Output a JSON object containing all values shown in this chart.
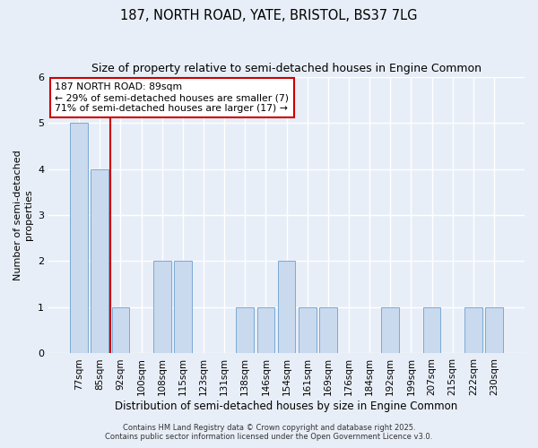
{
  "title1": "187, NORTH ROAD, YATE, BRISTOL, BS37 7LG",
  "title2": "Size of property relative to semi-detached houses in Engine Common",
  "xlabel": "Distribution of semi-detached houses by size in Engine Common",
  "ylabel": "Number of semi-detached\nproperties",
  "bar_labels": [
    "77sqm",
    "85sqm",
    "92sqm",
    "100sqm",
    "108sqm",
    "115sqm",
    "123sqm",
    "131sqm",
    "138sqm",
    "146sqm",
    "154sqm",
    "161sqm",
    "169sqm",
    "176sqm",
    "184sqm",
    "192sqm",
    "199sqm",
    "207sqm",
    "215sqm",
    "222sqm",
    "230sqm"
  ],
  "bar_values": [
    5,
    4,
    1,
    0,
    2,
    2,
    0,
    0,
    1,
    1,
    2,
    1,
    1,
    0,
    0,
    1,
    0,
    1,
    0,
    1,
    1
  ],
  "bar_color": "#c9d9ee",
  "bar_edge_color": "#7baad4",
  "vline_x_index": 1.5,
  "vline_color": "#cc0000",
  "annotation_title": "187 NORTH ROAD: 89sqm",
  "annotation_line1": "← 29% of semi-detached houses are smaller (7)",
  "annotation_line2": "71% of semi-detached houses are larger (17) →",
  "annotation_box_color": "#ffffff",
  "annotation_box_edgecolor": "#cc0000",
  "ylim": [
    0,
    6
  ],
  "yticks": [
    0,
    1,
    2,
    3,
    4,
    5,
    6
  ],
  "footer1": "Contains HM Land Registry data © Crown copyright and database right 2025.",
  "footer2": "Contains public sector information licensed under the Open Government Licence v3.0.",
  "bg_color": "#e8eef7",
  "plot_bg_color": "#e8eef7",
  "grid_color": "#ffffff",
  "title_fontsize": 10.5,
  "subtitle_fontsize": 9
}
